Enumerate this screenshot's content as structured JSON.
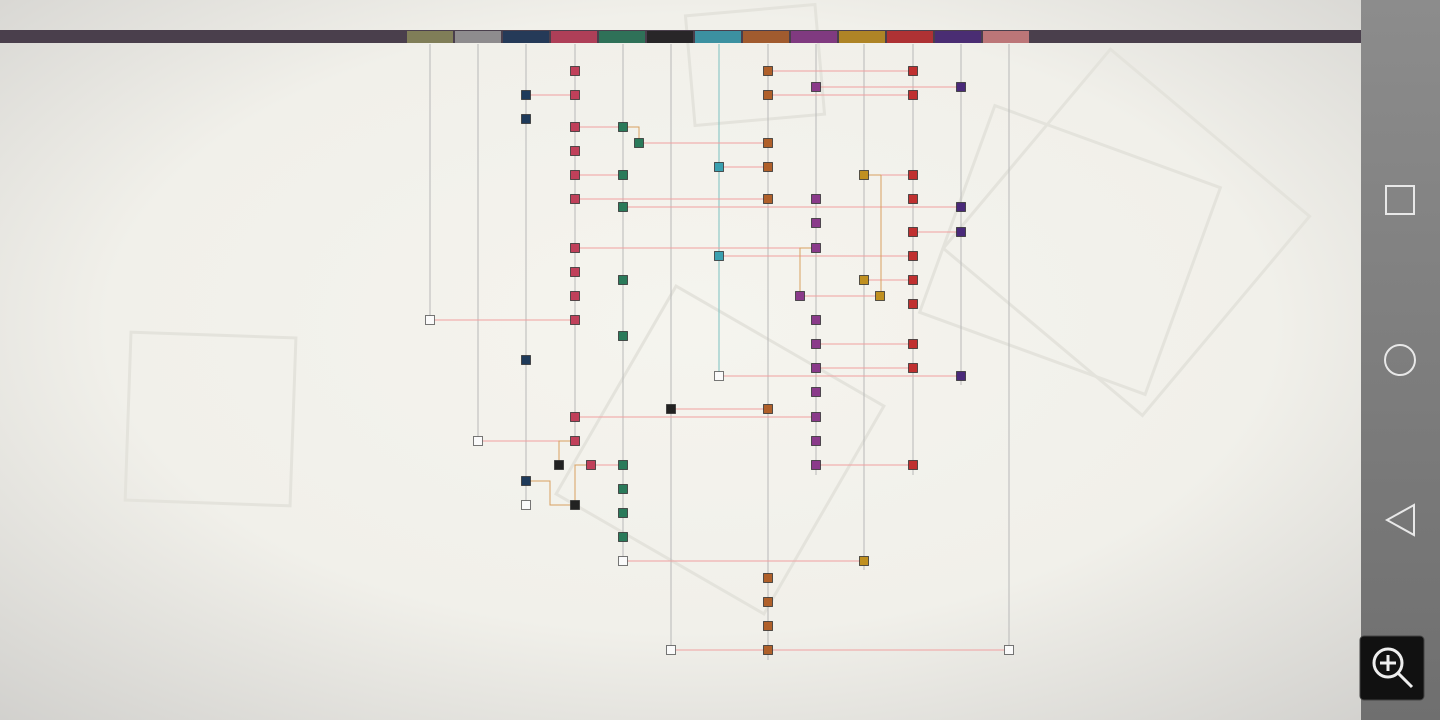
{
  "route_map": {
    "columns": [
      {
        "color": "#8a8a5a"
      },
      {
        "color": "#9a9a9a"
      },
      {
        "color": "#1e3a5a"
      },
      {
        "color": "#c0405a"
      },
      {
        "color": "#2a7a5a"
      },
      {
        "color": "#222222"
      },
      {
        "color": "#3aa0b0"
      },
      {
        "color": "#b0602a"
      },
      {
        "color": "#8a3a8a"
      },
      {
        "color": "#c09020"
      },
      {
        "color": "#c03030"
      },
      {
        "color": "#4a2a7a"
      },
      {
        "color": "#d08080"
      }
    ]
  }
}
